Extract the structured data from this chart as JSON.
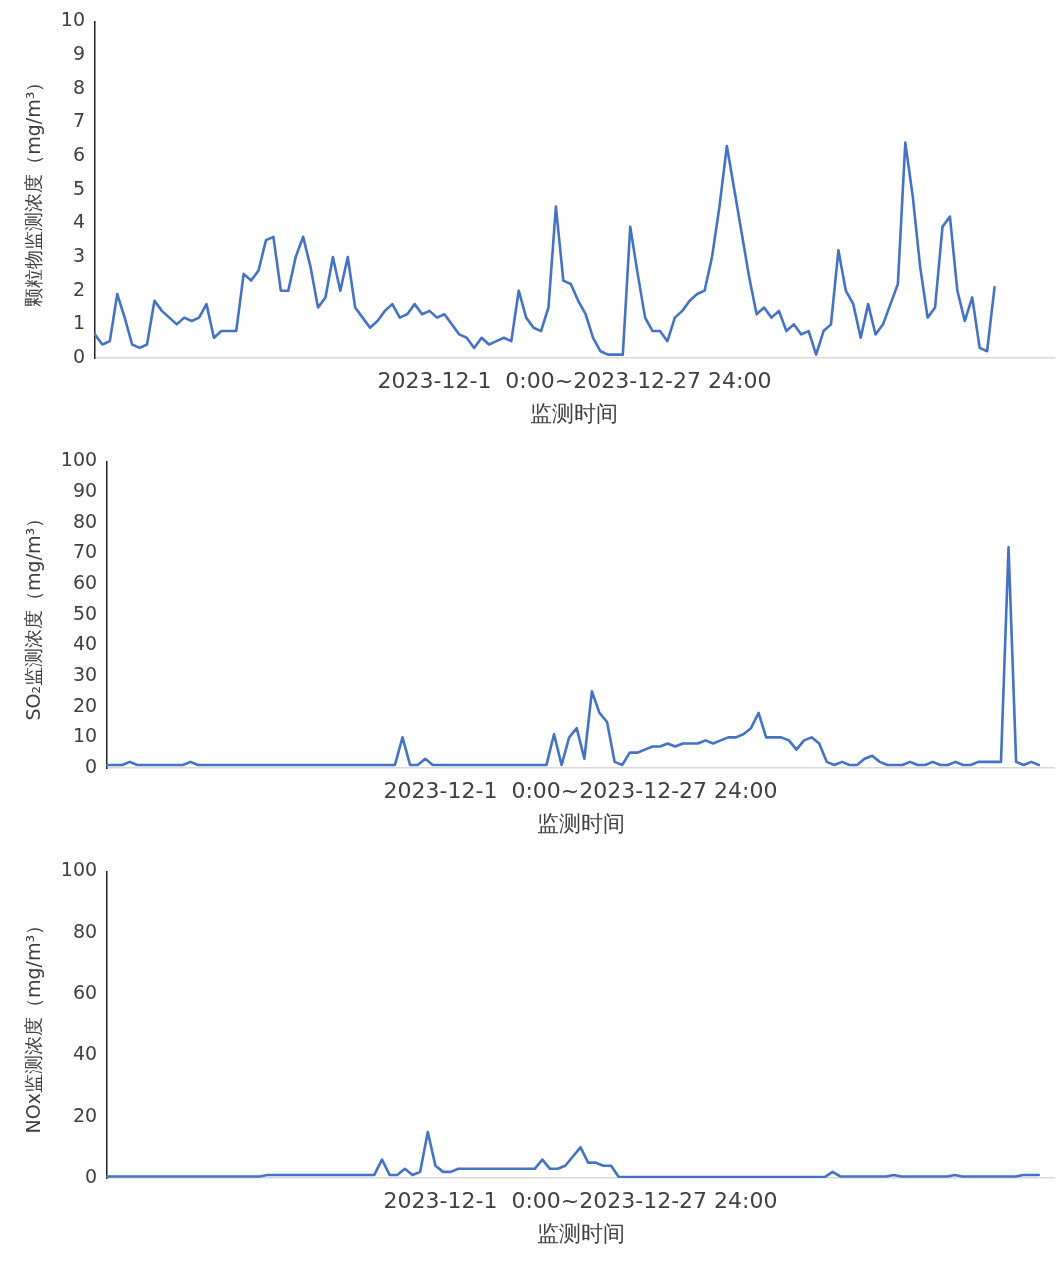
{
  "chart_data": [
    {
      "type": "line",
      "ylabel": "颗粒物监测浓度（mg/m³）",
      "xlabel": "监测时间",
      "annotations": [
        "2023-12-1  0:00~2023-12-27 24:00"
      ],
      "ylim": [
        0,
        10
      ],
      "yticks": [
        0,
        1,
        2,
        3,
        4,
        5,
        6,
        7,
        8,
        9,
        10
      ],
      "grid": false,
      "legend": false,
      "tick_labels": "y",
      "marker": "none",
      "line_style": "solid",
      "categories": [
        null,
        null,
        null,
        null,
        null,
        null,
        null,
        null,
        null,
        null,
        null,
        null,
        null,
        null,
        null,
        null,
        null,
        null,
        null,
        null,
        null,
        null,
        null,
        null,
        null,
        null,
        null,
        null,
        null,
        null,
        null,
        null,
        null,
        null,
        null,
        null,
        null,
        null,
        null,
        null,
        null,
        null,
        null,
        null,
        null,
        null,
        null,
        null,
        null,
        null,
        null,
        null,
        null,
        null,
        null,
        null,
        null,
        null,
        null,
        null,
        null,
        null,
        null,
        null,
        null,
        null,
        null,
        null,
        null,
        null,
        null,
        null,
        null,
        null,
        null,
        null,
        null,
        null,
        null,
        null,
        null,
        null,
        null,
        null,
        null,
        null,
        null,
        null,
        null,
        null,
        null,
        null,
        null,
        null,
        null,
        null,
        null,
        null,
        null,
        null,
        null,
        null,
        null,
        null,
        null,
        null,
        null,
        null,
        null,
        null,
        null,
        null,
        null,
        null,
        null,
        null,
        null,
        null,
        null,
        null,
        null,
        null,
        null,
        null,
        null,
        null,
        null,
        null,
        null,
        null
      ],
      "series": [
        {
          "color": "#4472c4",
          "values": [
            0.7,
            0.4,
            0.5,
            1.9,
            1.2,
            0.4,
            0.3,
            0.4,
            1.7,
            1.4,
            1.2,
            1.0,
            1.2,
            1.1,
            1.2,
            1.6,
            0.6,
            0.8,
            0.8,
            0.8,
            2.5,
            2.3,
            2.6,
            3.5,
            3.6,
            2.0,
            2.0,
            3.0,
            3.6,
            2.7,
            1.5,
            1.8,
            3.0,
            2.0,
            3.0,
            1.5,
            1.2,
            0.9,
            1.1,
            1.4,
            1.6,
            1.2,
            1.3,
            1.6,
            1.3,
            1.4,
            1.2,
            1.3,
            1.0,
            0.7,
            0.6,
            0.3,
            0.6,
            0.4,
            0.5,
            0.6,
            0.5,
            2.0,
            1.2,
            0.9,
            0.8,
            1.5,
            4.5,
            2.3,
            2.2,
            1.7,
            1.3,
            0.6,
            0.2,
            0.1,
            0.1,
            0.1,
            3.9,
            2.5,
            1.2,
            0.8,
            0.8,
            0.5,
            1.2,
            1.4,
            1.7,
            1.9,
            2.0,
            3.0,
            4.5,
            6.3,
            5.0,
            3.7,
            2.4,
            1.3,
            1.5,
            1.2,
            1.4,
            0.8,
            1.0,
            0.7,
            0.8,
            0.1,
            0.8,
            1.0,
            3.2,
            2.0,
            1.6,
            0.6,
            1.6,
            0.7,
            1.0,
            1.6,
            2.2,
            6.4,
            4.8,
            2.7,
            1.2,
            1.5,
            3.9,
            4.2,
            2.0,
            1.1,
            1.8,
            0.3,
            0.2,
            2.1,
            null,
            null,
            null,
            null,
            null,
            null,
            null,
            null
          ]
        }
      ]
    },
    {
      "type": "line",
      "ylabel": "SO₂监测浓度（mg/m³）",
      "xlabel": "监测时间",
      "annotations": [
        "2023-12-1  0:00~2023-12-27 24:00"
      ],
      "ylim": [
        0,
        100
      ],
      "yticks": [
        0,
        10,
        20,
        30,
        40,
        50,
        60,
        70,
        80,
        90,
        100
      ],
      "grid": false,
      "legend": false,
      "tick_labels": "y",
      "marker": "none",
      "line_style": "solid",
      "categories": [
        null,
        null,
        null,
        null,
        null,
        null,
        null,
        null,
        null,
        null,
        null,
        null,
        null,
        null,
        null,
        null,
        null,
        null,
        null,
        null,
        null,
        null,
        null,
        null,
        null,
        null,
        null,
        null,
        null,
        null,
        null,
        null,
        null,
        null,
        null,
        null,
        null,
        null,
        null,
        null,
        null,
        null,
        null,
        null,
        null,
        null,
        null,
        null,
        null,
        null,
        null,
        null,
        null,
        null,
        null,
        null,
        null,
        null,
        null,
        null,
        null,
        null,
        null,
        null,
        null,
        null,
        null,
        null,
        null,
        null,
        null,
        null,
        null,
        null,
        null,
        null,
        null,
        null,
        null,
        null,
        null,
        null,
        null,
        null,
        null,
        null,
        null,
        null,
        null,
        null,
        null,
        null,
        null,
        null,
        null,
        null,
        null,
        null,
        null,
        null,
        null,
        null,
        null,
        null,
        null,
        null,
        null,
        null,
        null,
        null,
        null,
        null,
        null,
        null,
        null,
        null,
        null,
        null,
        null,
        null,
        null,
        null,
        null,
        null,
        null,
        null
      ],
      "series": [
        {
          "color": "#4472c4",
          "values": [
            1,
            1,
            1,
            2,
            1,
            1,
            1,
            1,
            1,
            1,
            1,
            2,
            1,
            1,
            1,
            1,
            1,
            1,
            1,
            1,
            1,
            1,
            1,
            1,
            1,
            1,
            1,
            1,
            1,
            1,
            1,
            1,
            1,
            1,
            1,
            1,
            1,
            1,
            1,
            10,
            1,
            1,
            3,
            1,
            1,
            1,
            1,
            1,
            1,
            1,
            1,
            1,
            1,
            1,
            1,
            1,
            1,
            1,
            1,
            11,
            1,
            10,
            13,
            3,
            25,
            18,
            15,
            2,
            1,
            5,
            5,
            6,
            7,
            7,
            8,
            7,
            8,
            8,
            8,
            9,
            8,
            9,
            10,
            10,
            11,
            13,
            18,
            10,
            10,
            10,
            9,
            6,
            9,
            10,
            8,
            2,
            1,
            2,
            1,
            1,
            3,
            4,
            2,
            1,
            1,
            1,
            2,
            1,
            1,
            2,
            1,
            1,
            2,
            1,
            1,
            2,
            2,
            2,
            2,
            72,
            2,
            1,
            2,
            1,
            null,
            null
          ]
        }
      ]
    },
    {
      "type": "line",
      "ylabel": "NOx监测浓度（mg/m³）",
      "xlabel": "监测时间",
      "annotations": [
        "2023-12-1  0:00~2023-12-27 24:00"
      ],
      "ylim": [
        0,
        100
      ],
      "yticks": [
        0,
        20,
        40,
        60,
        80,
        100
      ],
      "grid": false,
      "legend": false,
      "tick_labels": "y",
      "marker": "none",
      "line_style": "solid",
      "categories": [
        null,
        null,
        null,
        null,
        null,
        null,
        null,
        null,
        null,
        null,
        null,
        null,
        null,
        null,
        null,
        null,
        null,
        null,
        null,
        null,
        null,
        null,
        null,
        null,
        null,
        null,
        null,
        null,
        null,
        null,
        null,
        null,
        null,
        null,
        null,
        null,
        null,
        null,
        null,
        null,
        null,
        null,
        null,
        null,
        null,
        null,
        null,
        null,
        null,
        null,
        null,
        null,
        null,
        null,
        null,
        null,
        null,
        null,
        null,
        null,
        null,
        null,
        null,
        null,
        null,
        null,
        null,
        null,
        null,
        null,
        null,
        null,
        null,
        null,
        null,
        null,
        null,
        null,
        null,
        null,
        null,
        null,
        null,
        null,
        null,
        null,
        null,
        null,
        null,
        null,
        null,
        null,
        null,
        null,
        null,
        null,
        null,
        null,
        null,
        null,
        null,
        null,
        null,
        null,
        null,
        null,
        null,
        null,
        null,
        null,
        null,
        null,
        null,
        null,
        null,
        null,
        null,
        null,
        null,
        null,
        null,
        null,
        null,
        null,
        null
      ],
      "series": [
        {
          "color": "#4472c4",
          "values": [
            0.5,
            0.5,
            0.5,
            0.5,
            0.5,
            0.5,
            0.5,
            0.5,
            0.5,
            0.5,
            0.5,
            0.5,
            0.5,
            0.5,
            0.5,
            0.5,
            0.5,
            0.5,
            0.5,
            0.5,
            0.5,
            1,
            1,
            1,
            1,
            1,
            1,
            1,
            1,
            1,
            1,
            1,
            1,
            1,
            1,
            1,
            6,
            1,
            1,
            3,
            1,
            2,
            15,
            4,
            2,
            2,
            3,
            3,
            3,
            3,
            3,
            3,
            3,
            3,
            3,
            3,
            3,
            6,
            3,
            3,
            4,
            7,
            10,
            5,
            5,
            4,
            4,
            0.3,
            0.3,
            0.3,
            0.3,
            0.3,
            0.3,
            0.3,
            0.3,
            0.3,
            0.3,
            0.3,
            0.3,
            0.3,
            0.3,
            0.3,
            0.3,
            0.3,
            0.3,
            0.3,
            0.3,
            0.3,
            0.3,
            0.3,
            0.3,
            0.3,
            0.3,
            0.3,
            0.3,
            2,
            0.5,
            0.5,
            0.5,
            0.5,
            0.5,
            0.5,
            0.5,
            1,
            0.5,
            0.5,
            0.5,
            0.5,
            0.5,
            0.5,
            0.5,
            1,
            0.5,
            0.5,
            0.5,
            0.5,
            0.5,
            0.5,
            0.5,
            0.5,
            1,
            1,
            1,
            null,
            null
          ]
        }
      ]
    }
  ]
}
